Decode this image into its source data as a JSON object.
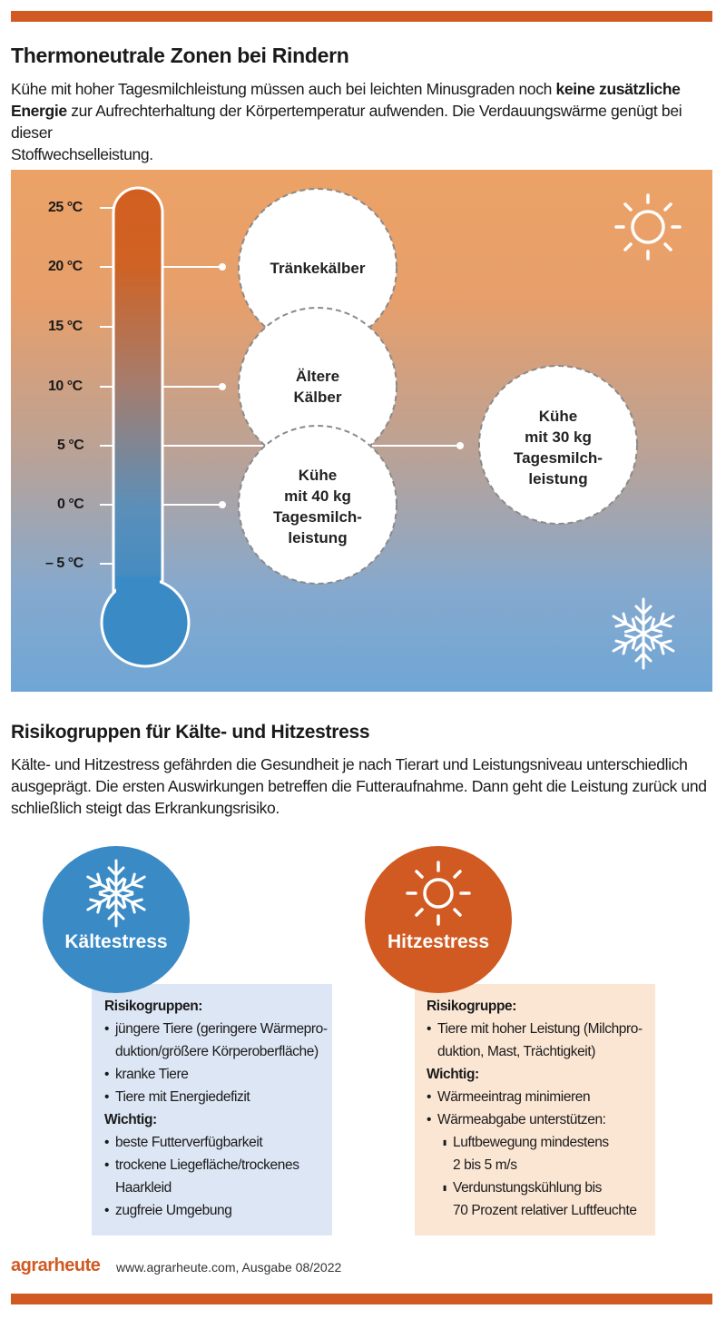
{
  "colors": {
    "accent": "#d05a22",
    "warm": "#eca266",
    "cold": "#6fa6d6",
    "cold_circle": "#3a8ac6",
    "hot_circle": "#d05a22",
    "cold_box": "#dde6f4",
    "hot_box": "#fbe6d4"
  },
  "header": {
    "title": "Thermoneutrale Zonen bei Rindern",
    "intro_part1": "Kühe mit hoher Tagesmilchleistung müssen auch bei leichten Minusgraden noch ",
    "intro_bold1": "keine zusätzliche",
    "intro_bold2": "Energie",
    "intro_part2": " zur Aufrechterhaltung der Körpertemperatur aufwenden. Die Verdauungswärme genügt bei dieser",
    "intro_part3": "Stoffwechselleistung."
  },
  "thermometer": {
    "labels": [
      "25 °C",
      "20 °C",
      "15 °C",
      "10 °C",
      "5 °C",
      "0 °C",
      "– 5 °C"
    ],
    "sun_icon": "sun-icon",
    "snow_icon": "snowflake-icon"
  },
  "zones": {
    "z1": "Tränkekälber",
    "z2_l1": "Ältere",
    "z2_l2": "Kälber",
    "z3_l1": "Kühe",
    "z3_l2": "mit 40 kg",
    "z3_l3": "Tagesmilch-",
    "z3_l4": "leistung",
    "z4_l1": "Kühe",
    "z4_l2": "mit 30 kg",
    "z4_l3": "Tagesmilch-",
    "z4_l4": "leistung"
  },
  "risk": {
    "title": "Risikogruppen für Kälte- und Hitzestress",
    "text_l1": "Kälte- und Hitzestress gefährden die Gesundheit je nach Tierart und Leistungsniveau unterschiedlich",
    "text_l2": "ausgeprägt. Die ersten Auswirkungen betreffen die Futteraufnahme. Dann geht die Leistung zurück und",
    "text_l3": "schließlich steigt das Erkrankungsrisiko."
  },
  "cold": {
    "title": "Kältestress",
    "groups_title": "Risikogruppen:",
    "g1_l1": "jüngere Tiere (geringere Wärmepro-",
    "g1_l2": "duktion/größere Körperoberfläche)",
    "g2": "kranke Tiere",
    "g3": "Tiere mit Energiedefizit",
    "important_title": "Wichtig:",
    "w1": "beste Futterverfügbarkeit",
    "w2_l1": "trockene Liegefläche/trockenes",
    "w2_l2": "Haarkleid",
    "w3": "zugfreie Umgebung"
  },
  "hot": {
    "title": "Hitzestress",
    "groups_title": "Risikogruppe:",
    "g1_l1": "Tiere mit hoher Leistung (Milchpro-",
    "g1_l2": "duktion, Mast, Trächtigkeit)",
    "important_title": "Wichtig:",
    "w1": "Wärmeeintrag minimieren",
    "w2": "Wärmeabgabe unterstützen:",
    "s1_l1": "Luftbewegung mindestens",
    "s1_l2": "2 bis 5 m/s",
    "s2_l1": "Verdunstungskühlung bis",
    "s2_l2": "70 Prozent relativer Luftfeuchte"
  },
  "footer": {
    "logo": "agrarheute",
    "source": "www.agrarheute.com,  Ausgabe 08/2022"
  }
}
